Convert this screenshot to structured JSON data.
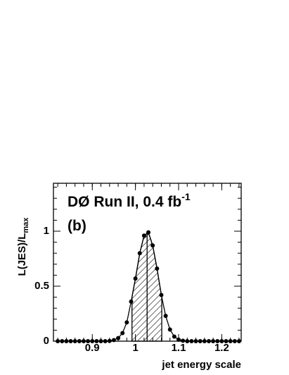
{
  "chart_data": {
    "type": "scatter",
    "annotation": "DØ Run II, 0.4 fb",
    "annotation_sup": "-1",
    "label": "(b)",
    "ylabel": "L(JES)/L",
    "ylabel_sub": "max",
    "xlabel": "jet energy scale",
    "x": [
      0.82,
      0.83,
      0.84,
      0.85,
      0.86,
      0.87,
      0.88,
      0.89,
      0.9,
      0.91,
      0.92,
      0.93,
      0.94,
      0.95,
      0.96,
      0.97,
      0.98,
      0.99,
      1.0,
      1.01,
      1.02,
      1.03,
      1.04,
      1.05,
      1.06,
      1.07,
      1.08,
      1.09,
      1.1,
      1.11,
      1.12,
      1.13,
      1.14,
      1.15,
      1.16,
      1.17,
      1.18,
      1.19,
      1.2,
      1.21,
      1.22,
      1.23,
      1.24
    ],
    "values": [
      0,
      0,
      0,
      0,
      0,
      0,
      0,
      0,
      0,
      0,
      0,
      0,
      0.002,
      0.01,
      0.028,
      0.074,
      0.171,
      0.36,
      0.57,
      0.8,
      0.96,
      0.99,
      0.87,
      0.66,
      0.42,
      0.23,
      0.106,
      0.042,
      0.014,
      0.004,
      0,
      0,
      0,
      0,
      0,
      0,
      0,
      0,
      0,
      0,
      0,
      0,
      0
    ],
    "band": [
      0.992,
      1.027,
      1.061
    ],
    "color": "#000000",
    "xlim": [
      0.81,
      1.245
    ],
    "ylim": [
      0,
      1.436
    ],
    "xticks": [
      0.9,
      1,
      1.1,
      1.2
    ],
    "yticks": [
      0,
      0.5,
      1
    ]
  }
}
